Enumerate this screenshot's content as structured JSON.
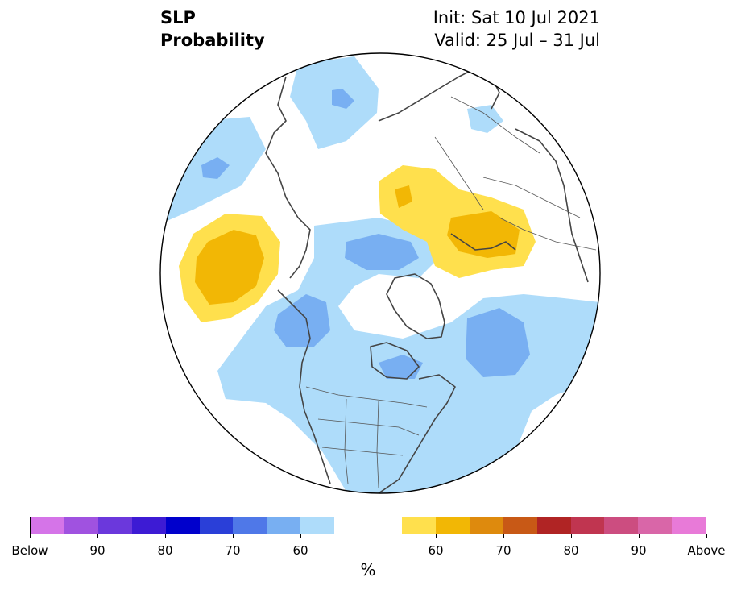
{
  "title": {
    "left_line1": "SLP",
    "left_line2": "Probability",
    "right_line1": "Init: Sat 10 Jul 2021",
    "right_line2": "Valid: 25 Jul – 31 Jul"
  },
  "colorbar": {
    "unit": "%",
    "colors": [
      "#d574e8",
      "#a052e0",
      "#6b38dc",
      "#3d1bd4",
      "#0000cc",
      "#2a3fd8",
      "#4f78e8",
      "#78aff2",
      "#aedcfa",
      "#ffffff",
      "#ffffff",
      "#ffe04d",
      "#f2b705",
      "#de8a0d",
      "#c85916",
      "#b02424",
      "#c03550",
      "#cc4d80",
      "#d966a8",
      "#e87ad8"
    ],
    "labels": [
      {
        "text": "Below",
        "boundary": 0
      },
      {
        "text": "90",
        "boundary": 2
      },
      {
        "text": "80",
        "boundary": 4
      },
      {
        "text": "70",
        "boundary": 6
      },
      {
        "text": "60",
        "boundary": 8
      },
      {
        "text": "60",
        "boundary": 12
      },
      {
        "text": "70",
        "boundary": 14
      },
      {
        "text": "80",
        "boundary": 16
      },
      {
        "text": "90",
        "boundary": 18
      },
      {
        "text": "Above",
        "boundary": 20
      }
    ]
  },
  "map_colors": {
    "below_light": "#aedcfa",
    "below_medium": "#78aff2",
    "above_light": "#ffe04d",
    "above_medium": "#f2b705",
    "land_outline": "#444444",
    "border": "#000000"
  }
}
